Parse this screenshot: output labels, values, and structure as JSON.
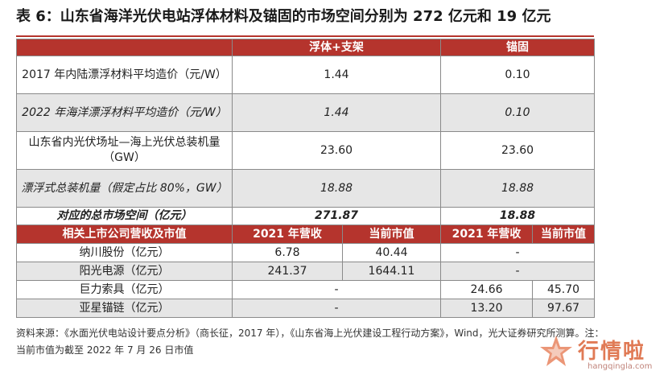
{
  "title": "表 6：山东省海洋光伏电站浮体材料及锚固的市场空间分别为 272 亿元和 19 亿元",
  "header": {
    "blank": "",
    "col1": "浮体+支架",
    "col2": "锚固"
  },
  "rows": [
    {
      "label": "2017 年内陆漂浮材料平均造价（元/W）",
      "v1": "1.44",
      "v2": "0.10"
    },
    {
      "label": "2022 年海洋漂浮材料平均造价（元/W）",
      "v1": "1.44",
      "v2": "0.10"
    },
    {
      "label": "山东省内光伏场址—海上光伏总装机量（GW）",
      "v1": "23.60",
      "v2": "23.60"
    },
    {
      "label": "漂浮式总装机量（假定占比 80%，GW）",
      "v1": "18.88",
      "v2": "18.88"
    },
    {
      "label": "对应的总市场空间（亿元）",
      "v1": "271.87",
      "v2": "18.88"
    }
  ],
  "subheader": {
    "label": "相关上市公司营收及市值",
    "rev1": "2021 年营收",
    "mv1": "当前市值",
    "rev2": "2021 年营收",
    "mv2": "当前市值"
  },
  "companies": [
    {
      "name": "纳川股份（亿元）",
      "rev1": "6.78",
      "mv1": "40.44",
      "span2": "-"
    },
    {
      "name": "阳光电源（亿元）",
      "rev1": "241.37",
      "mv1": "1644.11",
      "span2": "-"
    },
    {
      "name": "巨力索具（亿元）",
      "span1": "-",
      "rev2": "24.66",
      "mv2": "45.70"
    },
    {
      "name": "亚星锚链（亿元）",
      "span1": "-",
      "rev2": "13.20",
      "mv2": "97.67"
    }
  ],
  "footnote": "资料来源：《水面光伏电站设计要点分析》（商长征，2017 年），《山东省海上光伏建设工程行动方案》，Wind，光大证券研究所测算。注：当前市值为截至 2022 年 7 月 26 日市值",
  "watermark": {
    "text": "行情啦",
    "url": "hangqingla.com"
  }
}
